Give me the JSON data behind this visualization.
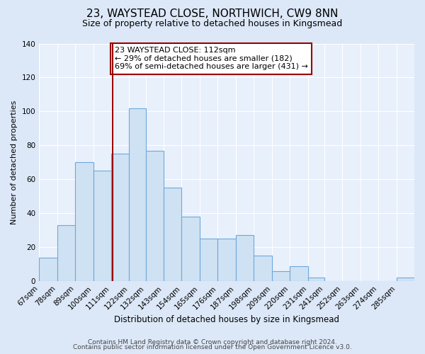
{
  "title": "23, WAYSTEAD CLOSE, NORTHWICH, CW9 8NN",
  "subtitle": "Size of property relative to detached houses in Kingsmead",
  "xlabel": "Distribution of detached houses by size in Kingsmead",
  "ylabel": "Number of detached properties",
  "bin_labels": [
    "67sqm",
    "78sqm",
    "89sqm",
    "100sqm",
    "111sqm",
    "122sqm",
    "132sqm",
    "143sqm",
    "154sqm",
    "165sqm",
    "176sqm",
    "187sqm",
    "198sqm",
    "209sqm",
    "220sqm",
    "231sqm",
    "241sqm",
    "252sqm",
    "263sqm",
    "274sqm",
    "285sqm"
  ],
  "bin_edges": [
    67,
    78,
    89,
    100,
    111,
    122,
    132,
    143,
    154,
    165,
    176,
    187,
    198,
    209,
    220,
    231,
    241,
    252,
    263,
    274,
    285,
    296
  ],
  "bar_heights": [
    14,
    33,
    70,
    65,
    75,
    102,
    77,
    55,
    38,
    25,
    25,
    27,
    15,
    6,
    9,
    2,
    0,
    0,
    0,
    0,
    2
  ],
  "bar_facecolor": "#cfe2f3",
  "bar_edgecolor": "#6fa8dc",
  "bar_linewidth": 0.8,
  "marker_value": 112,
  "marker_label_line1": "23 WAYSTEAD CLOSE: 112sqm",
  "marker_label_line2": "← 29% of detached houses are smaller (182)",
  "marker_label_line3": "69% of semi-detached houses are larger (431) →",
  "marker_color": "#990000",
  "annotation_box_edgecolor": "#990000",
  "annotation_box_facecolor": "#ffffff",
  "ylim": [
    0,
    140
  ],
  "yticks": [
    0,
    20,
    40,
    60,
    80,
    100,
    120,
    140
  ],
  "background_color": "#dce8f8",
  "plot_background": "#e8f0fb",
  "grid_color": "#ffffff",
  "footer_line1": "Contains HM Land Registry data © Crown copyright and database right 2024.",
  "footer_line2": "Contains public sector information licensed under the Open Government Licence v3.0.",
  "title_fontsize": 11,
  "subtitle_fontsize": 9,
  "xlabel_fontsize": 8.5,
  "ylabel_fontsize": 8,
  "tick_fontsize": 7.5,
  "footer_fontsize": 6.5,
  "annotation_fontsize": 8
}
